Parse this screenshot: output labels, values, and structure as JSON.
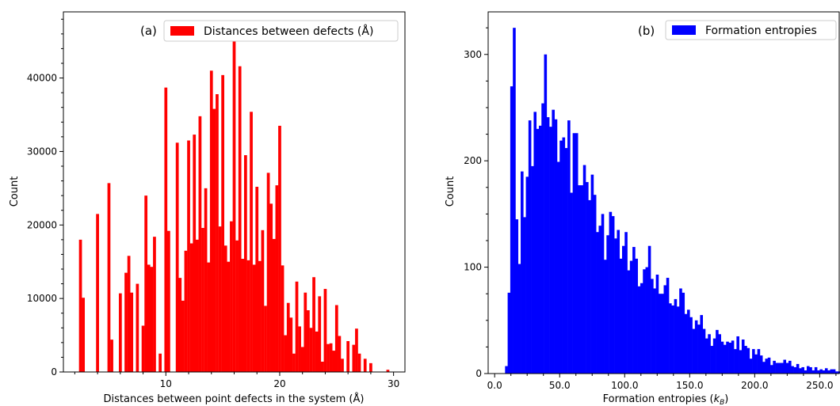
{
  "chart_data": [
    {
      "type": "bar",
      "panel_label": "(a)",
      "title": "",
      "xlabel": "Distances between point defects in the system (Å)",
      "ylabel": "Count",
      "xlim": [
        1,
        31
      ],
      "ylim": [
        0,
        49000
      ],
      "xticks": [
        10,
        20,
        30
      ],
      "yticks": [
        0,
        10000,
        20000,
        30000,
        40000
      ],
      "bar_width": 0.26,
      "legend": {
        "label": "Distances between defects (Å)",
        "color": "#ff0000",
        "position": "top-right"
      },
      "x": [
        2.5,
        2.75,
        4.0,
        5.0,
        5.25,
        6.0,
        6.5,
        6.75,
        7.0,
        7.5,
        8.0,
        8.25,
        8.5,
        8.75,
        9.0,
        9.5,
        10.0,
        10.25,
        11.0,
        11.25,
        11.5,
        11.75,
        12.0,
        12.25,
        12.5,
        12.75,
        13.0,
        13.25,
        13.5,
        13.75,
        14.0,
        14.25,
        14.5,
        14.75,
        15.0,
        15.25,
        15.5,
        15.75,
        16.0,
        16.25,
        16.5,
        16.75,
        17.0,
        17.25,
        17.5,
        17.75,
        18.0,
        18.25,
        18.5,
        18.75,
        19.0,
        19.25,
        19.5,
        19.75,
        20.0,
        20.25,
        20.5,
        20.75,
        21.0,
        21.25,
        21.5,
        21.75,
        22.0,
        22.25,
        22.5,
        22.75,
        23.0,
        23.25,
        23.5,
        23.75,
        24.0,
        24.25,
        24.5,
        24.75,
        25.0,
        25.25,
        25.5,
        26.0,
        26.5,
        26.75,
        27.0,
        27.5,
        28.0,
        29.5
      ],
      "values": [
        18000,
        10100,
        21500,
        25700,
        4400,
        10700,
        13500,
        15800,
        10800,
        12000,
        6300,
        24000,
        14600,
        14300,
        18400,
        2500,
        38700,
        19200,
        31200,
        12800,
        9700,
        16500,
        31500,
        17500,
        32300,
        18000,
        34800,
        19600,
        25000,
        14900,
        41000,
        35800,
        37800,
        19800,
        40400,
        17200,
        15000,
        20500,
        46800,
        17900,
        41600,
        15400,
        29500,
        15200,
        35400,
        14600,
        25200,
        15100,
        19300,
        9000,
        27100,
        22900,
        18100,
        25400,
        33500,
        14500,
        5000,
        9400,
        7400,
        2500,
        12300,
        6200,
        3400,
        10800,
        8400,
        6000,
        12900,
        5500,
        10300,
        1400,
        11300,
        3800,
        3900,
        2900,
        9100,
        4900,
        1800,
        4200,
        3700,
        5900,
        2500,
        1800,
        1200,
        300
      ],
      "value_note": ""
    },
    {
      "type": "bar",
      "panel_label": "(b)",
      "title": "",
      "xlabel": "Formation entropies (k_B)",
      "xlabel_main": "Formation entropies (",
      "xlabel_symbol": "k",
      "xlabel_sub": "B",
      "xlabel_end": ")",
      "ylabel": "Count",
      "xlim": [
        -5,
        265
      ],
      "ylim": [
        0,
        340
      ],
      "xticks": [
        0.0,
        50.0,
        100.0,
        150.0,
        200.0,
        250.0
      ],
      "xtick_labels": [
        "0.0",
        "50.0",
        "100.0",
        "150.0",
        "200.0",
        "250.0"
      ],
      "yticks": [
        0,
        100,
        200,
        300
      ],
      "bin_width": 2.0,
      "bin_start": 8.0,
      "legend": {
        "label": "Formation entropies",
        "color": "#0000ff",
        "position": "top-right"
      },
      "values": [
        7,
        76,
        270,
        325,
        145,
        103,
        190,
        147,
        185,
        238,
        195,
        246,
        230,
        233,
        254,
        300,
        241,
        232,
        248,
        239,
        199,
        219,
        222,
        212,
        238,
        170,
        226,
        226,
        177,
        177,
        196,
        180,
        163,
        187,
        168,
        133,
        139,
        150,
        107,
        130,
        152,
        148,
        127,
        135,
        108,
        120,
        133,
        97,
        106,
        119,
        108,
        82,
        85,
        98,
        100,
        120,
        89,
        80,
        93,
        75,
        75,
        83,
        90,
        66,
        64,
        70,
        63,
        80,
        76,
        56,
        60,
        53,
        42,
        50,
        46,
        55,
        42,
        33,
        37,
        26,
        33,
        41,
        37,
        30,
        27,
        30,
        29,
        31,
        23,
        35,
        22,
        32,
        26,
        24,
        14,
        23,
        18,
        23,
        17,
        11,
        14,
        15,
        8,
        12,
        10,
        10,
        10,
        13,
        10,
        12,
        7,
        6,
        9,
        5,
        6,
        3,
        7,
        6,
        3,
        6,
        3,
        4,
        3,
        5,
        3,
        4,
        4,
        2,
        2,
        3,
        1,
        2,
        3,
        3,
        3,
        1,
        2,
        3,
        2,
        2
      ]
    }
  ]
}
